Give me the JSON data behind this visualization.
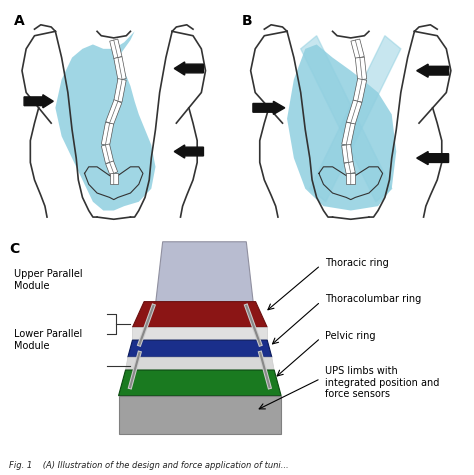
{
  "panel_A_label": "A",
  "panel_B_label": "B",
  "panel_C_label": "C",
  "label_fontsize": 10,
  "annotation_fontsize": 7,
  "caption_fontsize": 6,
  "bg_color": "#ffffff",
  "torso_blue": "#90cfe0",
  "body_outline": "#333333",
  "spine_color": "#444444",
  "arrow_color": "#111111",
  "thoracic_color": "#8b1515",
  "thoracolumbar_color": "#1a2f8b",
  "pelvic_color": "#1a7a20",
  "body_gray": "#c0c0cc",
  "caption_text": "Fig. 1    (A) Illustration of the design and force application of tuni..."
}
